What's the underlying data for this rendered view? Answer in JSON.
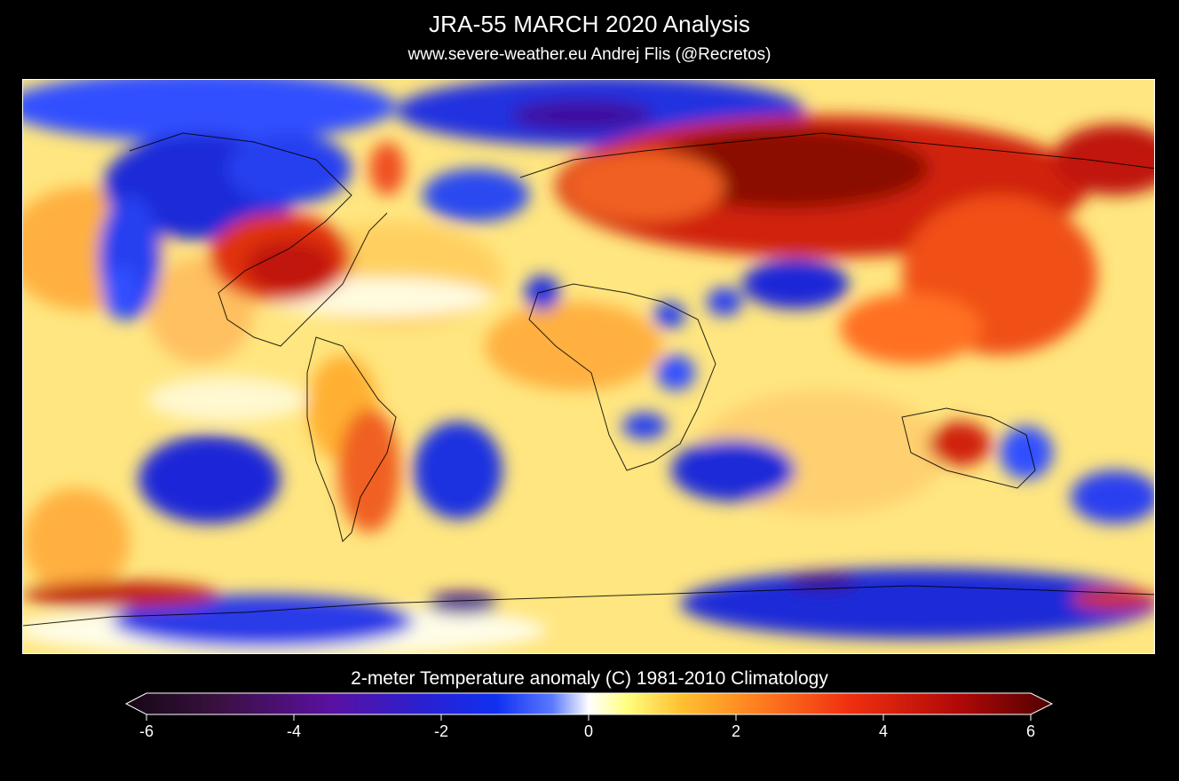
{
  "header": {
    "title": "JRA-55  MARCH 2020 Analysis",
    "subtitle": "www.severe-weather.eu   Andrej Flis (@Recretos)"
  },
  "map": {
    "variable": "2-meter Temperature anomaly",
    "projection": "equirectangular global",
    "features": [
      "coastlines",
      "country borders",
      "US state borders"
    ]
  },
  "colorbar": {
    "title": "2-meter Temperature anomaly (C)  1981-2010 Climatology",
    "min": -6,
    "max": 6,
    "ticks": [
      "-6",
      "-4",
      "-2",
      "0",
      "2",
      "4",
      "6"
    ],
    "extend": "both",
    "colors": [
      "#140814",
      "#3a1040",
      "#5a10a0",
      "#2a20d0",
      "#1030f0",
      "#5a78ff",
      "#ffffff",
      "#ffff80",
      "#ffc030",
      "#ff8020",
      "#f03010",
      "#b00808",
      "#500000"
    ]
  }
}
